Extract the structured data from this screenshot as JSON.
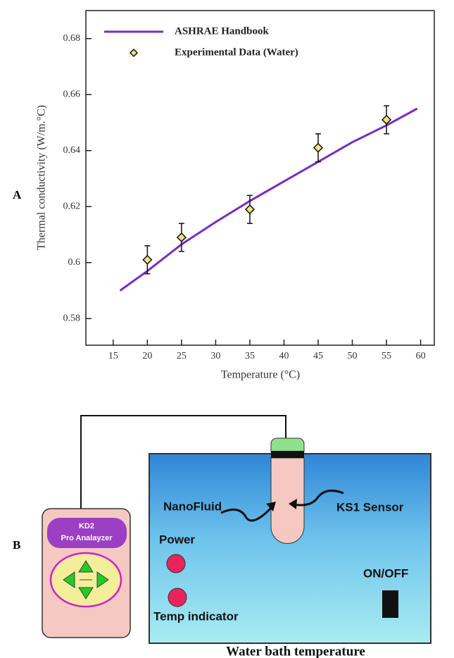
{
  "panel_labels": [
    "A",
    "B"
  ],
  "chart_data": {
    "type": "line",
    "xlabel": "Temperature (°C)",
    "ylabel": "Thermal conductivity (W/m.°C)",
    "series": [
      {
        "name": "ASHRAE Handbook",
        "color": "#7a2cc0",
        "kind": "line",
        "x": [
          16,
          20,
          25,
          30,
          35,
          40,
          45,
          50,
          55,
          59.5
        ],
        "values": [
          0.59,
          0.597,
          0.6065,
          0.6145,
          0.622,
          0.629,
          0.636,
          0.643,
          0.649,
          0.655
        ]
      },
      {
        "name": "Experimental Data (Water)",
        "color": "#f3e27a",
        "kind": "marker",
        "x": [
          20,
          25,
          35,
          45,
          55
        ],
        "values": [
          0.601,
          0.609,
          0.619,
          0.641,
          0.651
        ],
        "errors": [
          0.005,
          0.005,
          0.005,
          0.005,
          0.005
        ]
      }
    ],
    "xlim": [
      11,
      62
    ],
    "xticks": [
      15,
      20,
      25,
      30,
      35,
      40,
      45,
      50,
      55,
      60
    ],
    "ylim": [
      0.5705,
      0.69
    ],
    "yticks": [
      0.58,
      0.6,
      0.62,
      0.64,
      0.66,
      0.68
    ],
    "grid": false,
    "legend": "upper left"
  },
  "diagram": {
    "analyzer_title": "KD2",
    "analyzer_subtitle": "Pro Analayzer",
    "fluid": "NanoFluid",
    "sensor": "KS1 Sensor",
    "power": "Power",
    "temp": "Temp indicator",
    "switch": "ON/OFF",
    "caption": "Water bath temperature"
  }
}
